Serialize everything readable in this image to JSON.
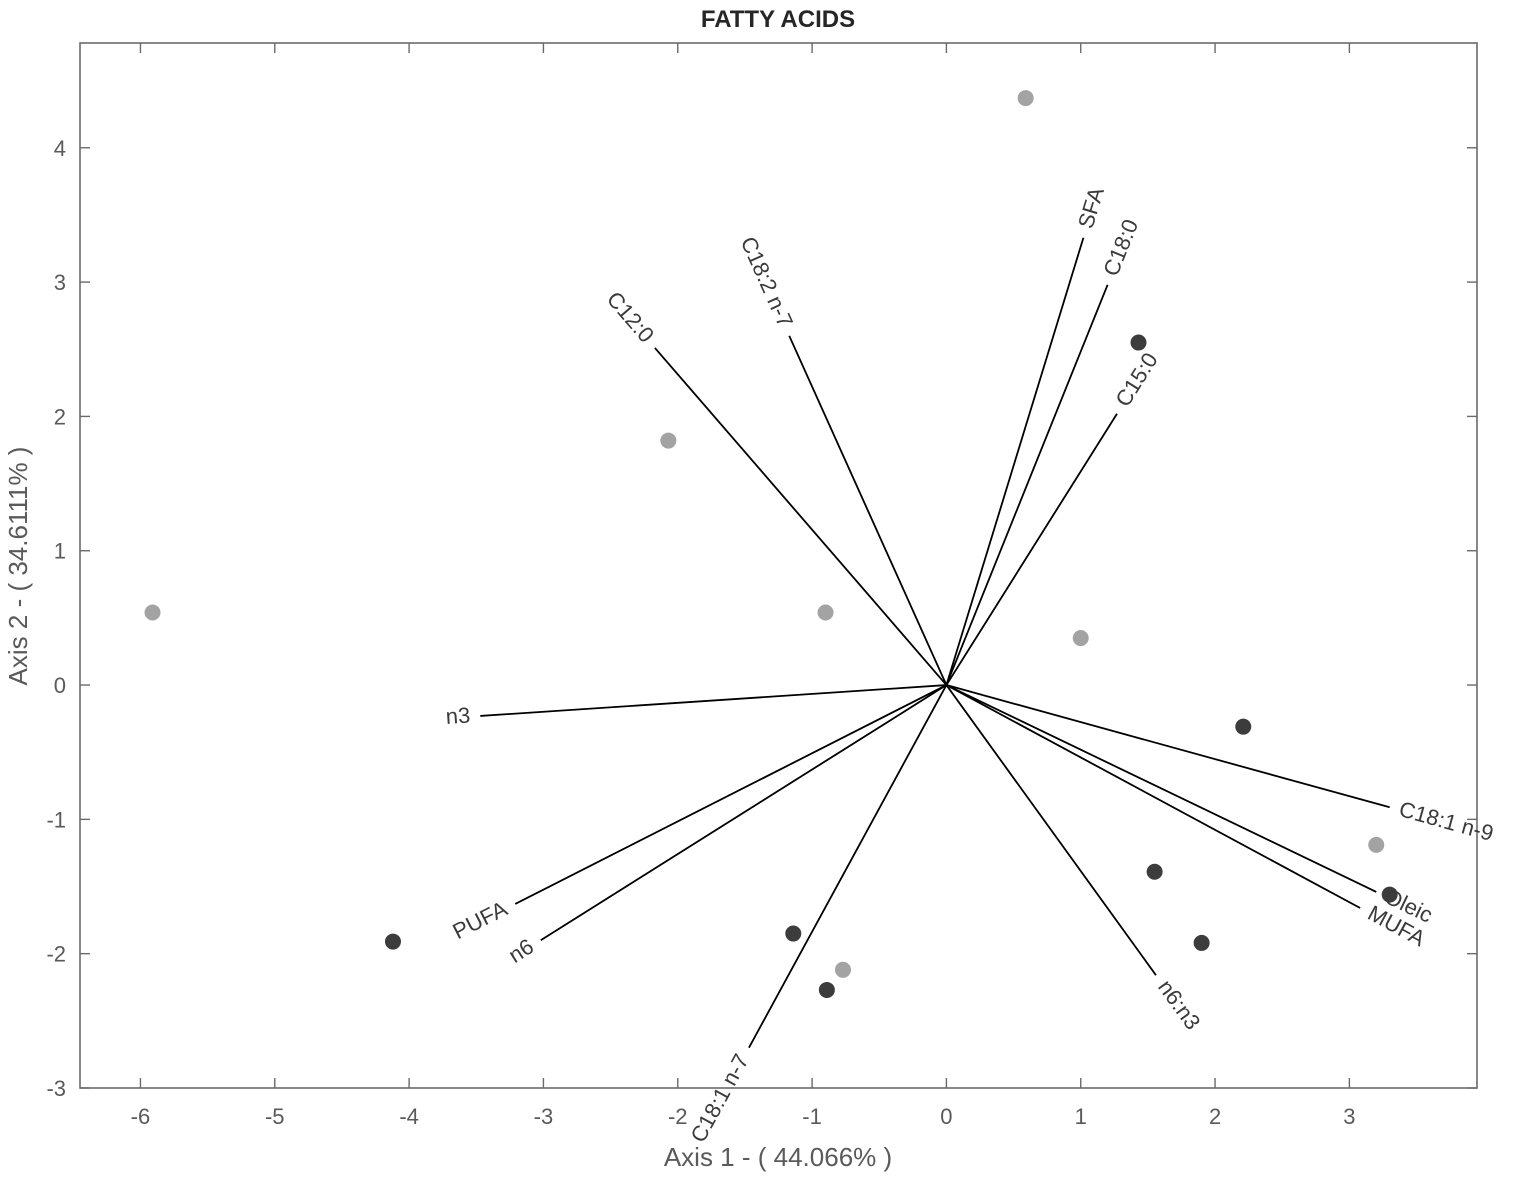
{
  "chart_data": {
    "type": "scatter",
    "title": "FATTY ACIDS",
    "xlabel": "Axis 1 - ( 44.066% )",
    "ylabel": "Axis 2 - ( 34.6111% )",
    "xlim": [
      -6.45,
      3.95
    ],
    "ylim": [
      -3.0,
      4.78
    ],
    "xticks": [
      -6,
      -5,
      -4,
      -3,
      -2,
      -1,
      0,
      1,
      2,
      3
    ],
    "yticks": [
      -3,
      -2,
      -1,
      0,
      1,
      2,
      3,
      4
    ],
    "grid": false,
    "legend": "none",
    "colors": {
      "light_points": "#a3a3a3",
      "dark_points": "#3c3c3c",
      "vectors": "#000000"
    },
    "series": [
      {
        "color": "#a3a3a3",
        "points": [
          {
            "x": 0.59,
            "y": 4.37
          },
          {
            "x": -2.07,
            "y": 1.82
          },
          {
            "x": -5.91,
            "y": 0.54
          },
          {
            "x": -0.9,
            "y": 0.54
          },
          {
            "x": 1.0,
            "y": 0.35
          },
          {
            "x": 3.2,
            "y": -1.19
          },
          {
            "x": -0.77,
            "y": -2.12
          }
        ]
      },
      {
        "color": "#3c3c3c",
        "points": [
          {
            "x": 1.43,
            "y": 2.55
          },
          {
            "x": 2.21,
            "y": -0.31
          },
          {
            "x": 1.55,
            "y": -1.39
          },
          {
            "x": 3.3,
            "y": -1.56
          },
          {
            "x": 1.9,
            "y": -1.92
          },
          {
            "x": -4.12,
            "y": -1.91
          },
          {
            "x": -1.14,
            "y": -1.85
          },
          {
            "x": -0.89,
            "y": -2.27
          }
        ]
      }
    ],
    "vectors": [
      {
        "label": "SFA",
        "x": 1.02,
        "y": 3.33
      },
      {
        "label": "C18:0",
        "x": 1.2,
        "y": 2.98
      },
      {
        "label": "C15:0",
        "x": 1.27,
        "y": 2.02
      },
      {
        "label": "C18:2 n-7",
        "x": -1.17,
        "y": 2.6
      },
      {
        "label": "C12:0",
        "x": -2.17,
        "y": 2.51
      },
      {
        "label": "n3",
        "x": -3.47,
        "y": -0.23
      },
      {
        "label": "PUFA",
        "x": -3.21,
        "y": -1.63
      },
      {
        "label": "n6",
        "x": -3.02,
        "y": -1.9
      },
      {
        "label": "C18:1 n-7",
        "x": -1.47,
        "y": -2.7
      },
      {
        "label": "n6:n3",
        "x": 1.56,
        "y": -2.16
      },
      {
        "label": "C18:1 n-9",
        "x": 3.3,
        "y": -0.91
      },
      {
        "label": "Oleic",
        "x": 3.2,
        "y": -1.54
      },
      {
        "label": "MUFA",
        "x": 3.08,
        "y": -1.66
      }
    ]
  }
}
